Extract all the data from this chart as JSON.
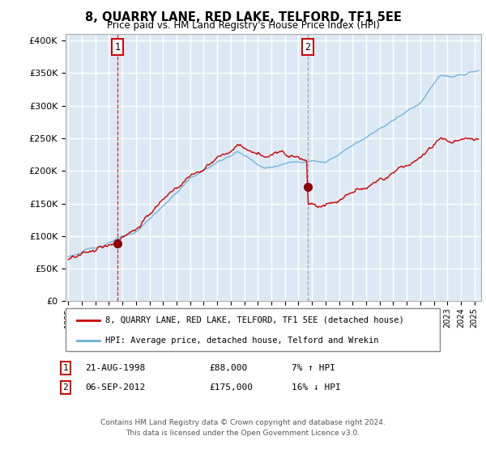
{
  "title": "8, QUARRY LANE, RED LAKE, TELFORD, TF1 5EE",
  "subtitle": "Price paid vs. HM Land Registry's House Price Index (HPI)",
  "ylim": [
    0,
    410000
  ],
  "xlim_start": 1994.8,
  "xlim_end": 2025.5,
  "background_color": "#dce9f5",
  "grid_color": "#ffffff",
  "hpi_line_color": "#6baed6",
  "price_line_color": "#cc0000",
  "sale1_x": 1998.646,
  "sale1_y": 88000,
  "sale2_x": 2012.676,
  "sale2_y": 175000,
  "sale1_label": "1",
  "sale2_label": "2",
  "vline1_color": "#cc0000",
  "vline2_color": "#999999",
  "marker_color": "#8b0000",
  "legend_line1": "8, QUARRY LANE, RED LAKE, TELFORD, TF1 5EE (detached house)",
  "legend_line2": "HPI: Average price, detached house, Telford and Wrekin",
  "table_row1": [
    "1",
    "21-AUG-1998",
    "£88,000",
    "7% ↑ HPI"
  ],
  "table_row2": [
    "2",
    "06-SEP-2012",
    "£175,000",
    "16% ↓ HPI"
  ],
  "footer": "Contains HM Land Registry data © Crown copyright and database right 2024.\nThis data is licensed under the Open Government Licence v3.0.",
  "hatch_region_start": 2025.0
}
